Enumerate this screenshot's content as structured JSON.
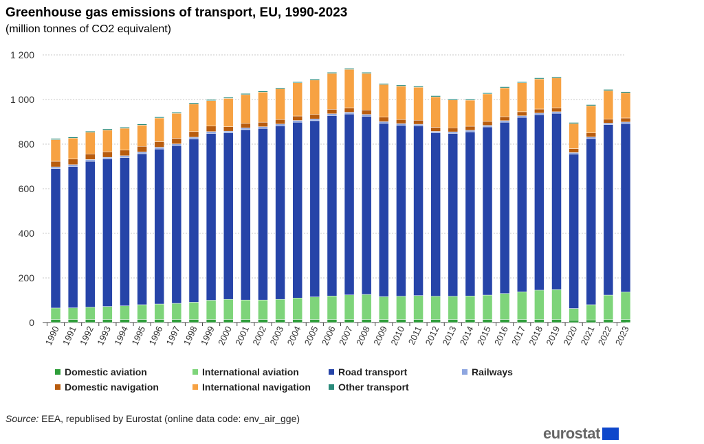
{
  "chart_data": {
    "type": "bar",
    "stacked": true,
    "title": "Greenhouse gas emissions of transport, EU, 1990-2023",
    "subtitle": "(million tonnes of CO2 equivalent)",
    "xlabel": "",
    "ylabel": "",
    "ylim": [
      0,
      1200
    ],
    "yticks": [
      0,
      200,
      400,
      600,
      800,
      1000,
      1200
    ],
    "ytick_labels": [
      "0",
      "200",
      "400",
      "600",
      "800",
      "1 000",
      "1 200"
    ],
    "grid": true,
    "legend_position": "bottom",
    "categories": [
      "1990",
      "1991",
      "1992",
      "1993",
      "1994",
      "1995",
      "1996",
      "1997",
      "1998",
      "1999",
      "2000",
      "2001",
      "2002",
      "2003",
      "2004",
      "2005",
      "2006",
      "2007",
      "2008",
      "2009",
      "2010",
      "2011",
      "2012",
      "2013",
      "2014",
      "2015",
      "2016",
      "2017",
      "2018",
      "2019",
      "2020",
      "2021",
      "2022",
      "2023"
    ],
    "series": [
      {
        "name": "Domestic aviation",
        "color": "#2e9e3a",
        "values": [
          14,
          14,
          14,
          14,
          14,
          14,
          14,
          14,
          14,
          14,
          14,
          14,
          14,
          14,
          14,
          14,
          14,
          14,
          14,
          14,
          14,
          14,
          14,
          14,
          14,
          14,
          14,
          14,
          14,
          14,
          10,
          12,
          13,
          14
        ]
      },
      {
        "name": "International aviation",
        "color": "#7ed47a",
        "values": [
          51,
          52,
          55,
          58,
          61,
          66,
          69,
          72,
          77,
          86,
          90,
          87,
          87,
          90,
          96,
          101,
          105,
          110,
          112,
          102,
          104,
          107,
          104,
          104,
          105,
          109,
          116,
          124,
          131,
          134,
          53,
          68,
          110,
          123
        ]
      },
      {
        "name": "Road transport",
        "color": "#2644a8",
        "values": [
          625,
          634,
          654,
          661,
          665,
          677,
          695,
          707,
          732,
          748,
          746,
          764,
          769,
          778,
          788,
          790,
          809,
          811,
          799,
          777,
          767,
          761,
          732,
          730,
          736,
          754,
          768,
          782,
          787,
          790,
          692,
          745,
          764,
          755
        ]
      },
      {
        "name": "Railways",
        "color": "#8ea6e0",
        "values": [
          8,
          8,
          8,
          8,
          8,
          8,
          8,
          8,
          8,
          8,
          8,
          8,
          8,
          8,
          8,
          8,
          8,
          8,
          8,
          8,
          7,
          7,
          7,
          7,
          7,
          7,
          7,
          7,
          7,
          7,
          7,
          7,
          7,
          7
        ]
      },
      {
        "name": "Domestic navigation",
        "color": "#b85c0e",
        "values": [
          25,
          25,
          25,
          25,
          25,
          25,
          25,
          25,
          25,
          25,
          20,
          20,
          20,
          20,
          20,
          20,
          20,
          20,
          20,
          20,
          18,
          18,
          18,
          18,
          18,
          18,
          18,
          18,
          18,
          18,
          18,
          18,
          18,
          18
        ]
      },
      {
        "name": "International navigation",
        "color": "#f7a243",
        "values": [
          97,
          94,
          97,
          97,
          98,
          95,
          106,
          112,
          124,
          114,
          127,
          129,
          135,
          138,
          149,
          154,
          161,
          172,
          164,
          146,
          150,
          148,
          137,
          125,
          117,
          123,
          129,
          130,
          135,
          134,
          112,
          122,
          128,
          113
        ]
      },
      {
        "name": "Other transport",
        "color": "#2a8a7a",
        "values": [
          5,
          5,
          5,
          5,
          5,
          5,
          5,
          5,
          5,
          5,
          5,
          5,
          5,
          5,
          5,
          5,
          5,
          5,
          5,
          5,
          5,
          5,
          5,
          5,
          5,
          5,
          5,
          5,
          5,
          5,
          5,
          5,
          5,
          5
        ]
      }
    ]
  },
  "source": {
    "label": "Source:",
    "text": " EEA, republised by Eurostat (online data code: env_air_gge)"
  },
  "logo": {
    "text": "eurostat"
  }
}
